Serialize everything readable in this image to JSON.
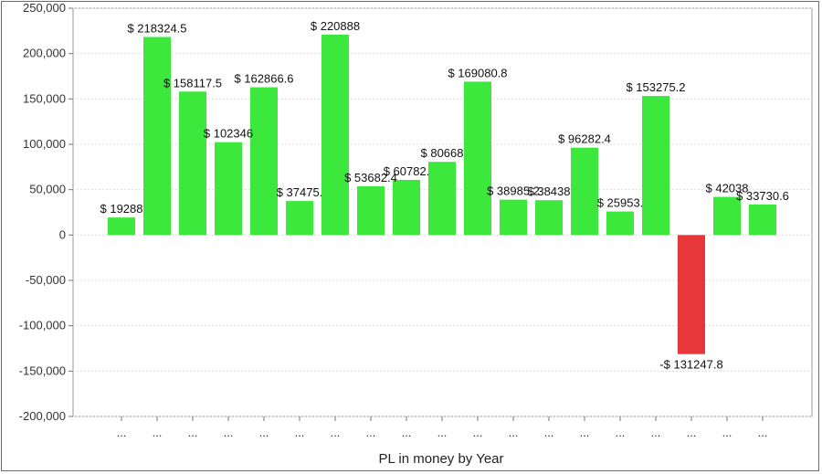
{
  "chart_data": {
    "type": "bar",
    "xlabel": "PL in money by Year",
    "ylim": [
      -200000,
      250000
    ],
    "y_ticks": [
      250000,
      200000,
      150000,
      100000,
      50000,
      0,
      -50000,
      -100000,
      -150000,
      -200000
    ],
    "y_tick_labels": [
      "250,000",
      "200,000",
      "150,000",
      "100,000",
      "50,000",
      "0",
      "-50,000",
      "-100,000",
      "-150,000",
      "-200,000"
    ],
    "categories": [
      "...",
      "...",
      "...",
      "...",
      "...",
      "...",
      "...",
      "...",
      "...",
      "...",
      "...",
      "...",
      "...",
      "...",
      "...",
      "...",
      "...",
      "...",
      "..."
    ],
    "values": [
      19288,
      218324.5,
      158117.5,
      102346,
      162866.6,
      37475,
      220888,
      53682.4,
      60782,
      80668,
      169080.8,
      38985.2,
      38438,
      96282.4,
      25953,
      153275.2,
      -131247.8,
      42038,
      33730.6
    ],
    "data_labels": [
      "$ 19288",
      "$ 218324.5",
      "$ 158117.5",
      "$ 102346",
      "$ 162866.6",
      "$ 37475.",
      "$ 220888",
      "$ 53682.4",
      "$ 60782.",
      "$ 80668",
      "$ 169080.8",
      "$ 38985.2",
      "$ 38438",
      "$ 96282.4",
      "$ 25953.",
      "$ 153275.2",
      "-$ 131247.8",
      "$ 42038",
      "$ 33730.6"
    ],
    "grid": true,
    "positive_color": "#3de83d",
    "negative_color": "#e8373a"
  }
}
